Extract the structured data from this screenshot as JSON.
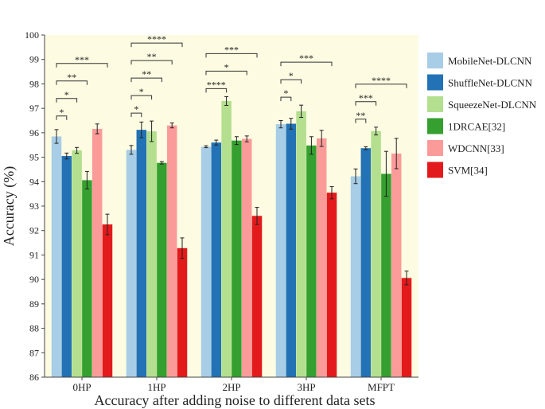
{
  "chart_data": {
    "type": "bar",
    "title": "",
    "xlabel": "Accuracy after adding noise to different data sets",
    "ylabel": "Accuracy (%)",
    "ylim": [
      86,
      100
    ],
    "yticks": [
      "86",
      "87",
      "88",
      "89",
      "90",
      "91",
      "92",
      "93",
      "94",
      "95",
      "96",
      "97",
      "98",
      "99",
      "100"
    ],
    "categories": [
      "0HP",
      "1HP",
      "2HP",
      "3HP",
      "MFPT"
    ],
    "series": [
      {
        "name": "MobileNet-DLCNN",
        "color": "#a8cde6",
        "values": [
          95.85,
          95.3,
          95.43,
          96.35,
          94.22
        ],
        "errors": [
          0.28,
          0.18,
          0.04,
          0.15,
          0.3
        ]
      },
      {
        "name": "ShuffleNet-DLCNN",
        "color": "#2272b5",
        "values": [
          95.05,
          96.12,
          95.6,
          96.37,
          95.37
        ],
        "errors": [
          0.12,
          0.32,
          0.1,
          0.22,
          0.06
        ]
      },
      {
        "name": "SqueezeNet-DLCNN",
        "color": "#b3df8f",
        "values": [
          95.28,
          96.06,
          97.3,
          96.88,
          96.07
        ],
        "errors": [
          0.12,
          0.42,
          0.18,
          0.25,
          0.16
        ]
      },
      {
        "name": "1DRCAE[32]",
        "color": "#35a02f",
        "values": [
          94.06,
          94.77,
          95.68,
          95.48,
          94.32
        ],
        "errors": [
          0.36,
          0.05,
          0.16,
          0.36,
          0.92
        ]
      },
      {
        "name": "WDCNN[33]",
        "color": "#fb9b99",
        "values": [
          96.16,
          96.3,
          95.75,
          95.77,
          95.15
        ],
        "errors": [
          0.2,
          0.1,
          0.12,
          0.33,
          0.62
        ]
      },
      {
        "name": "SVM[34]",
        "color": "#e31a1c",
        "values": [
          92.25,
          91.28,
          92.6,
          93.55,
          90.06
        ],
        "errors": [
          0.42,
          0.42,
          0.35,
          0.25,
          0.28
        ]
      }
    ],
    "significance": [
      {
        "category": 0,
        "from": 0,
        "to": 1,
        "level": 0,
        "label": "*"
      },
      {
        "category": 0,
        "from": 0,
        "to": 2,
        "level": 1,
        "label": "*"
      },
      {
        "category": 0,
        "from": 0,
        "to": 3,
        "level": 2,
        "label": "**"
      },
      {
        "category": 0,
        "from": 0,
        "to": 5,
        "level": 3,
        "label": "***"
      },
      {
        "category": 1,
        "from": 0,
        "to": 1,
        "level": 0,
        "label": "*"
      },
      {
        "category": 1,
        "from": 0,
        "to": 2,
        "level": 1,
        "label": "*"
      },
      {
        "category": 1,
        "from": 0,
        "to": 3,
        "level": 2,
        "label": "**"
      },
      {
        "category": 1,
        "from": 0,
        "to": 4,
        "level": 3,
        "label": "**"
      },
      {
        "category": 1,
        "from": 0,
        "to": 5,
        "level": 4,
        "label": "****"
      },
      {
        "category": 2,
        "from": 0,
        "to": 2,
        "level": 0,
        "label": "****"
      },
      {
        "category": 2,
        "from": 0,
        "to": 4,
        "level": 1,
        "label": "*"
      },
      {
        "category": 2,
        "from": 0,
        "to": 5,
        "level": 2,
        "label": "***"
      },
      {
        "category": 3,
        "from": 0,
        "to": 1,
        "level": 0,
        "label": "*"
      },
      {
        "category": 3,
        "from": 0,
        "to": 2,
        "level": 1,
        "label": "*"
      },
      {
        "category": 3,
        "from": 0,
        "to": 5,
        "level": 2,
        "label": "***"
      },
      {
        "category": 4,
        "from": 0,
        "to": 1,
        "level": 0,
        "label": "**"
      },
      {
        "category": 4,
        "from": 0,
        "to": 2,
        "level": 1,
        "label": "***"
      },
      {
        "category": 4,
        "from": 0,
        "to": 5,
        "level": 2,
        "label": "****"
      }
    ],
    "legend_position": "right",
    "grid": false
  }
}
